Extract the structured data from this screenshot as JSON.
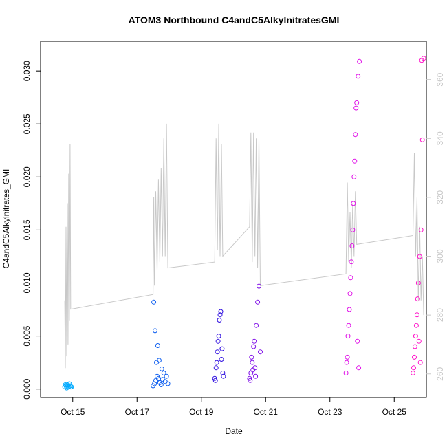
{
  "chart_data": {
    "type": "scatter",
    "title": "ATOM3 Northbound C4andC5AlkylnitratesGMI",
    "xlabel": "Date",
    "ylabel": "C4andC5Alkylnitrates_GMI",
    "x_axis": {
      "unit": "date",
      "range": [
        "2017-10-14",
        "2017-10-26"
      ],
      "ticks": [
        {
          "value": "2017-10-15",
          "label": "Oct 15"
        },
        {
          "value": "2017-10-17",
          "label": "Oct 17"
        },
        {
          "value": "2017-10-19",
          "label": "Oct 19"
        },
        {
          "value": "2017-10-21",
          "label": "Oct 21"
        },
        {
          "value": "2017-10-23",
          "label": "Oct 23"
        },
        {
          "value": "2017-10-25",
          "label": "Oct 25"
        }
      ]
    },
    "y_left": {
      "range": [
        -0.0008,
        0.0328
      ],
      "ticks": [
        0.0,
        0.005,
        0.01,
        0.015,
        0.02,
        0.025,
        0.03
      ],
      "tick_labels": [
        "0.000",
        "0.005",
        "0.010",
        "0.015",
        "0.020",
        "0.025",
        "0.030"
      ]
    },
    "y_right": {
      "range": [
        252,
        373
      ],
      "ticks": [
        260,
        280,
        300,
        320,
        340,
        360
      ],
      "tick_labels": [
        "260",
        "280",
        "300",
        "320",
        "340",
        "360"
      ],
      "color": "#c8c8c8"
    },
    "grid": false,
    "colors": {
      "cyan": "#00aaff",
      "blue": "#1060f0",
      "indigo": "#3010e0",
      "violet": "#8010e8",
      "magenta": "#e010e8",
      "pink": "#ff10c8",
      "line": "#c8c8c8"
    },
    "line_series": {
      "axis": "right",
      "points": [
        [
          "2017-10-14 18:00",
          285
        ],
        [
          "2017-10-14 18:30",
          262
        ],
        [
          "2017-10-14 19:00",
          310
        ],
        [
          "2017-10-14 19:30",
          266
        ],
        [
          "2017-10-14 20:00",
          318
        ],
        [
          "2017-10-14 20:30",
          270
        ],
        [
          "2017-10-14 21:00",
          328
        ],
        [
          "2017-10-14 21:30",
          278
        ],
        [
          "2017-10-14 22:00",
          338
        ],
        [
          "2017-10-14 22:30",
          282
        ],
        [
          "2017-10-17 12:00",
          287
        ],
        [
          "2017-10-17 12:30",
          320
        ],
        [
          "2017-10-17 13:00",
          290
        ],
        [
          "2017-10-17 14:00",
          322
        ],
        [
          "2017-10-17 15:00",
          295
        ],
        [
          "2017-10-17 16:00",
          326
        ],
        [
          "2017-10-17 17:00",
          298
        ],
        [
          "2017-10-17 18:00",
          330
        ],
        [
          "2017-10-17 19:00",
          300
        ],
        [
          "2017-10-17 20:00",
          340
        ],
        [
          "2017-10-17 21:00",
          300
        ],
        [
          "2017-10-17 22:00",
          345
        ],
        [
          "2017-10-17 23:00",
          296
        ],
        [
          "2017-10-19 10:00",
          298
        ],
        [
          "2017-10-19 11:00",
          340
        ],
        [
          "2017-10-19 12:00",
          302
        ],
        [
          "2017-10-19 13:00",
          345
        ],
        [
          "2017-10-19 14:00",
          300
        ],
        [
          "2017-10-19 15:00",
          338
        ],
        [
          "2017-10-19 16:00",
          300
        ],
        [
          "2017-10-20 12:00",
          310
        ],
        [
          "2017-10-20 13:00",
          342
        ],
        [
          "2017-10-20 14:00",
          298
        ],
        [
          "2017-10-20 15:00",
          342
        ],
        [
          "2017-10-20 16:00",
          300
        ],
        [
          "2017-10-20 17:00",
          340
        ],
        [
          "2017-10-20 18:00",
          296
        ],
        [
          "2017-10-20 19:00",
          340
        ],
        [
          "2017-10-20 20:00",
          290
        ],
        [
          "2017-10-23 12:00",
          294
        ],
        [
          "2017-10-23 13:00",
          325
        ],
        [
          "2017-10-23 14:00",
          298
        ],
        [
          "2017-10-23 15:00",
          315
        ],
        [
          "2017-10-23 16:00",
          296
        ],
        [
          "2017-10-23 17:00",
          318
        ],
        [
          "2017-10-23 18:00",
          300
        ],
        [
          "2017-10-23 19:00",
          322
        ],
        [
          "2017-10-23 20:00",
          304
        ],
        [
          "2017-10-25 14:00",
          307
        ],
        [
          "2017-10-25 15:00",
          335
        ],
        [
          "2017-10-25 16:00",
          300
        ],
        [
          "2017-10-25 17:00",
          320
        ],
        [
          "2017-10-25 18:00",
          285
        ],
        [
          "2017-10-25 19:00",
          310
        ],
        [
          "2017-10-25 20:00",
          285
        ],
        [
          "2017-10-25 21:00",
          300
        ],
        [
          "2017-10-25 22:00",
          280
        ]
      ]
    },
    "scatter_series": [
      {
        "color": "cyan",
        "points": [
          [
            "2017-10-14 18:00",
            0.0002
          ],
          [
            "2017-10-14 19:00",
            0.0003
          ],
          [
            "2017-10-14 20:00",
            0.0004
          ],
          [
            "2017-10-14 21:00",
            0.0002
          ],
          [
            "2017-10-14 22:00",
            0.0003
          ],
          [
            "2017-10-14 23:00",
            0.0002
          ],
          [
            "2017-10-14 18:30",
            0.0004
          ],
          [
            "2017-10-14 19:30",
            0.0001
          ],
          [
            "2017-10-14 20:30",
            0.0003
          ],
          [
            "2017-10-14 21:30",
            0.0005
          ],
          [
            "2017-10-14 22:30",
            0.0002
          ]
        ]
      },
      {
        "color": "blue",
        "points": [
          [
            "2017-10-17 12:00",
            0.0003
          ],
          [
            "2017-10-17 13:00",
            0.0005
          ],
          [
            "2017-10-17 14:00",
            0.0008
          ],
          [
            "2017-10-17 15:00",
            0.0012
          ],
          [
            "2017-10-17 16:00",
            0.001
          ],
          [
            "2017-10-17 17:00",
            0.0006
          ],
          [
            "2017-10-17 18:00",
            0.0004
          ],
          [
            "2017-10-17 19:00",
            0.0009
          ],
          [
            "2017-10-17 20:00",
            0.0015
          ],
          [
            "2017-10-17 21:00",
            0.0007
          ],
          [
            "2017-10-17 22:00",
            0.0012
          ],
          [
            "2017-10-17 23:00",
            0.0005
          ],
          [
            "2017-10-17 14:30",
            0.0025
          ],
          [
            "2017-10-17 15:30",
            0.0041
          ],
          [
            "2017-10-17 13:30",
            0.0055
          ],
          [
            "2017-10-17 12:30",
            0.0082
          ],
          [
            "2017-10-17 16:30",
            0.0027
          ],
          [
            "2017-10-17 18:30",
            0.0019
          ]
        ]
      },
      {
        "color": "indigo",
        "points": [
          [
            "2017-10-19 10:00",
            0.001
          ],
          [
            "2017-10-19 11:00",
            0.002
          ],
          [
            "2017-10-19 12:00",
            0.0035
          ],
          [
            "2017-10-19 13:00",
            0.005
          ],
          [
            "2017-10-19 14:00",
            0.007
          ],
          [
            "2017-10-19 15:00",
            0.0028
          ],
          [
            "2017-10-19 16:00",
            0.0015
          ],
          [
            "2017-10-19 10:30",
            0.0008
          ],
          [
            "2017-10-19 11:30",
            0.0025
          ],
          [
            "2017-10-19 12:30",
            0.0045
          ],
          [
            "2017-10-19 13:30",
            0.0065
          ],
          [
            "2017-10-19 14:30",
            0.0073
          ],
          [
            "2017-10-19 15:30",
            0.0038
          ],
          [
            "2017-10-19 16:30",
            0.0012
          ]
        ]
      },
      {
        "color": "violet",
        "points": [
          [
            "2017-10-20 12:00",
            0.001
          ],
          [
            "2017-10-20 13:00",
            0.0015
          ],
          [
            "2017-10-20 14:00",
            0.0025
          ],
          [
            "2017-10-20 15:00",
            0.004
          ],
          [
            "2017-10-20 16:00",
            0.002
          ],
          [
            "2017-10-20 17:00",
            0.006
          ],
          [
            "2017-10-20 18:00",
            0.0082
          ],
          [
            "2017-10-20 19:00",
            0.0097
          ],
          [
            "2017-10-20 20:00",
            0.0035
          ],
          [
            "2017-10-20 12:30",
            0.0008
          ],
          [
            "2017-10-20 13:30",
            0.003
          ],
          [
            "2017-10-20 14:30",
            0.0018
          ],
          [
            "2017-10-20 15:30",
            0.0045
          ],
          [
            "2017-10-20 16:30",
            0.0012
          ]
        ]
      },
      {
        "color": "magenta",
        "points": [
          [
            "2017-10-23 12:00",
            0.0015
          ],
          [
            "2017-10-23 13:00",
            0.003
          ],
          [
            "2017-10-23 14:00",
            0.006
          ],
          [
            "2017-10-23 15:00",
            0.009
          ],
          [
            "2017-10-23 16:00",
            0.012
          ],
          [
            "2017-10-23 17:00",
            0.015
          ],
          [
            "2017-10-23 18:00",
            0.02
          ],
          [
            "2017-10-23 19:00",
            0.024
          ],
          [
            "2017-10-23 20:00",
            0.027
          ],
          [
            "2017-10-23 21:00",
            0.0295
          ],
          [
            "2017-10-23 22:00",
            0.0309
          ],
          [
            "2017-10-23 12:30",
            0.0025
          ],
          [
            "2017-10-23 13:30",
            0.005
          ],
          [
            "2017-10-23 14:30",
            0.0075
          ],
          [
            "2017-10-23 15:30",
            0.0105
          ],
          [
            "2017-10-23 16:30",
            0.0135
          ],
          [
            "2017-10-23 17:30",
            0.0175
          ],
          [
            "2017-10-23 18:30",
            0.0215
          ],
          [
            "2017-10-23 19:30",
            0.0265
          ],
          [
            "2017-10-23 20:30",
            0.0045
          ],
          [
            "2017-10-23 21:30",
            0.002
          ]
        ]
      },
      {
        "color": "pink",
        "points": [
          [
            "2017-10-25 14:00",
            0.0015
          ],
          [
            "2017-10-25 15:00",
            0.003
          ],
          [
            "2017-10-25 16:00",
            0.005
          ],
          [
            "2017-10-25 17:00",
            0.007
          ],
          [
            "2017-10-25 18:00",
            0.01
          ],
          [
            "2017-10-25 19:00",
            0.0125
          ],
          [
            "2017-10-25 20:00",
            0.015
          ],
          [
            "2017-10-25 21:00",
            0.0235
          ],
          [
            "2017-10-25 22:00",
            0.0312
          ],
          [
            "2017-10-25 14:30",
            0.002
          ],
          [
            "2017-10-25 15:30",
            0.004
          ],
          [
            "2017-10-25 16:30",
            0.006
          ],
          [
            "2017-10-25 17:30",
            0.0085
          ],
          [
            "2017-10-25 18:30",
            0.0045
          ],
          [
            "2017-10-25 19:30",
            0.0025
          ],
          [
            "2017-10-25 20:30",
            0.031
          ]
        ]
      }
    ]
  }
}
